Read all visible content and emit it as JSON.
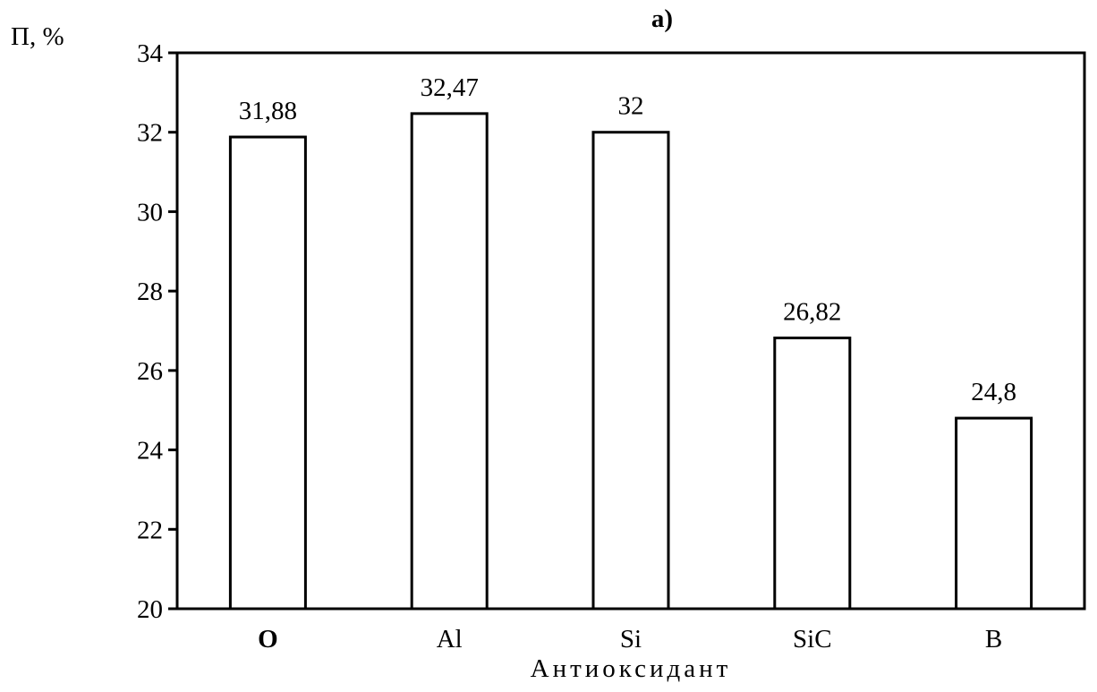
{
  "chart_data": {
    "type": "bar",
    "title": "а)",
    "ylabel": "П, %",
    "xlabel": "Антиоксидант",
    "categories": [
      "О",
      "Al",
      "Si",
      "SiC",
      "В"
    ],
    "bold_categories": [
      "О"
    ],
    "values": [
      31.88,
      32.47,
      32,
      26.82,
      24.8
    ],
    "value_labels": [
      "31,88",
      "32,47",
      "32",
      "26,82",
      "24,8"
    ],
    "ylim": [
      20,
      34
    ],
    "yticks": [
      20,
      22,
      24,
      26,
      28,
      30,
      32,
      34
    ],
    "ytick_labels": [
      "20",
      "22",
      "24",
      "26",
      "28",
      "30",
      "32",
      "34"
    ],
    "grid": false,
    "legend": "none",
    "colors": {
      "bar_fill": "#ffffff",
      "bar_stroke": "#000000",
      "axis": "#000000"
    }
  }
}
